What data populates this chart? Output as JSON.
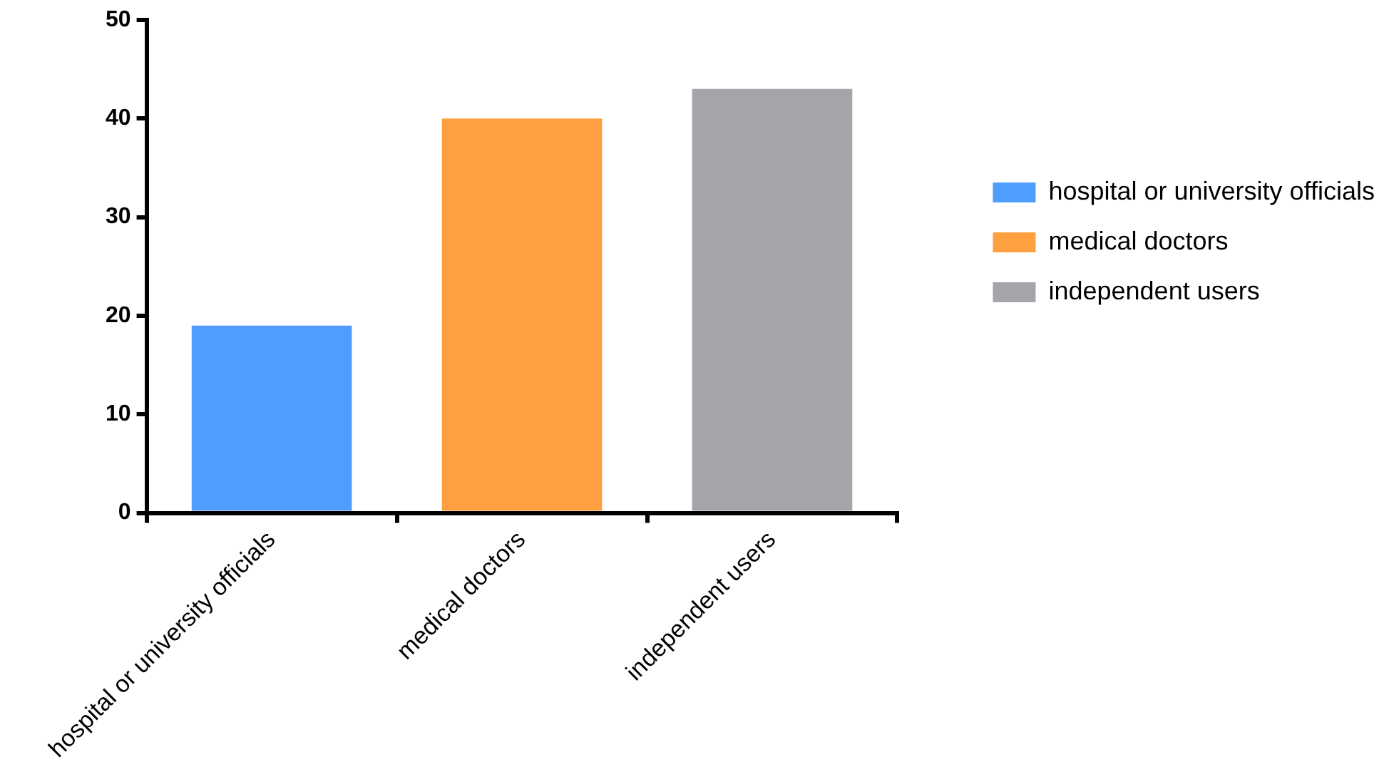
{
  "chart_data": {
    "type": "bar",
    "categories": [
      "hospital or university officials",
      "medical doctors",
      "independent users"
    ],
    "series": [
      {
        "name": "hospital or university officials",
        "color": "#4f9dff",
        "values": [
          19,
          null,
          null
        ]
      },
      {
        "name": "medical doctors",
        "color": "#ffa040",
        "values": [
          null,
          40,
          null
        ]
      },
      {
        "name": "independent users",
        "color": "#a5a4a9",
        "values": [
          null,
          null,
          43
        ]
      }
    ],
    "ylim": [
      0,
      50
    ],
    "yticks": [
      0,
      10,
      20,
      30,
      40,
      50
    ],
    "grid": false,
    "legend": "right"
  }
}
